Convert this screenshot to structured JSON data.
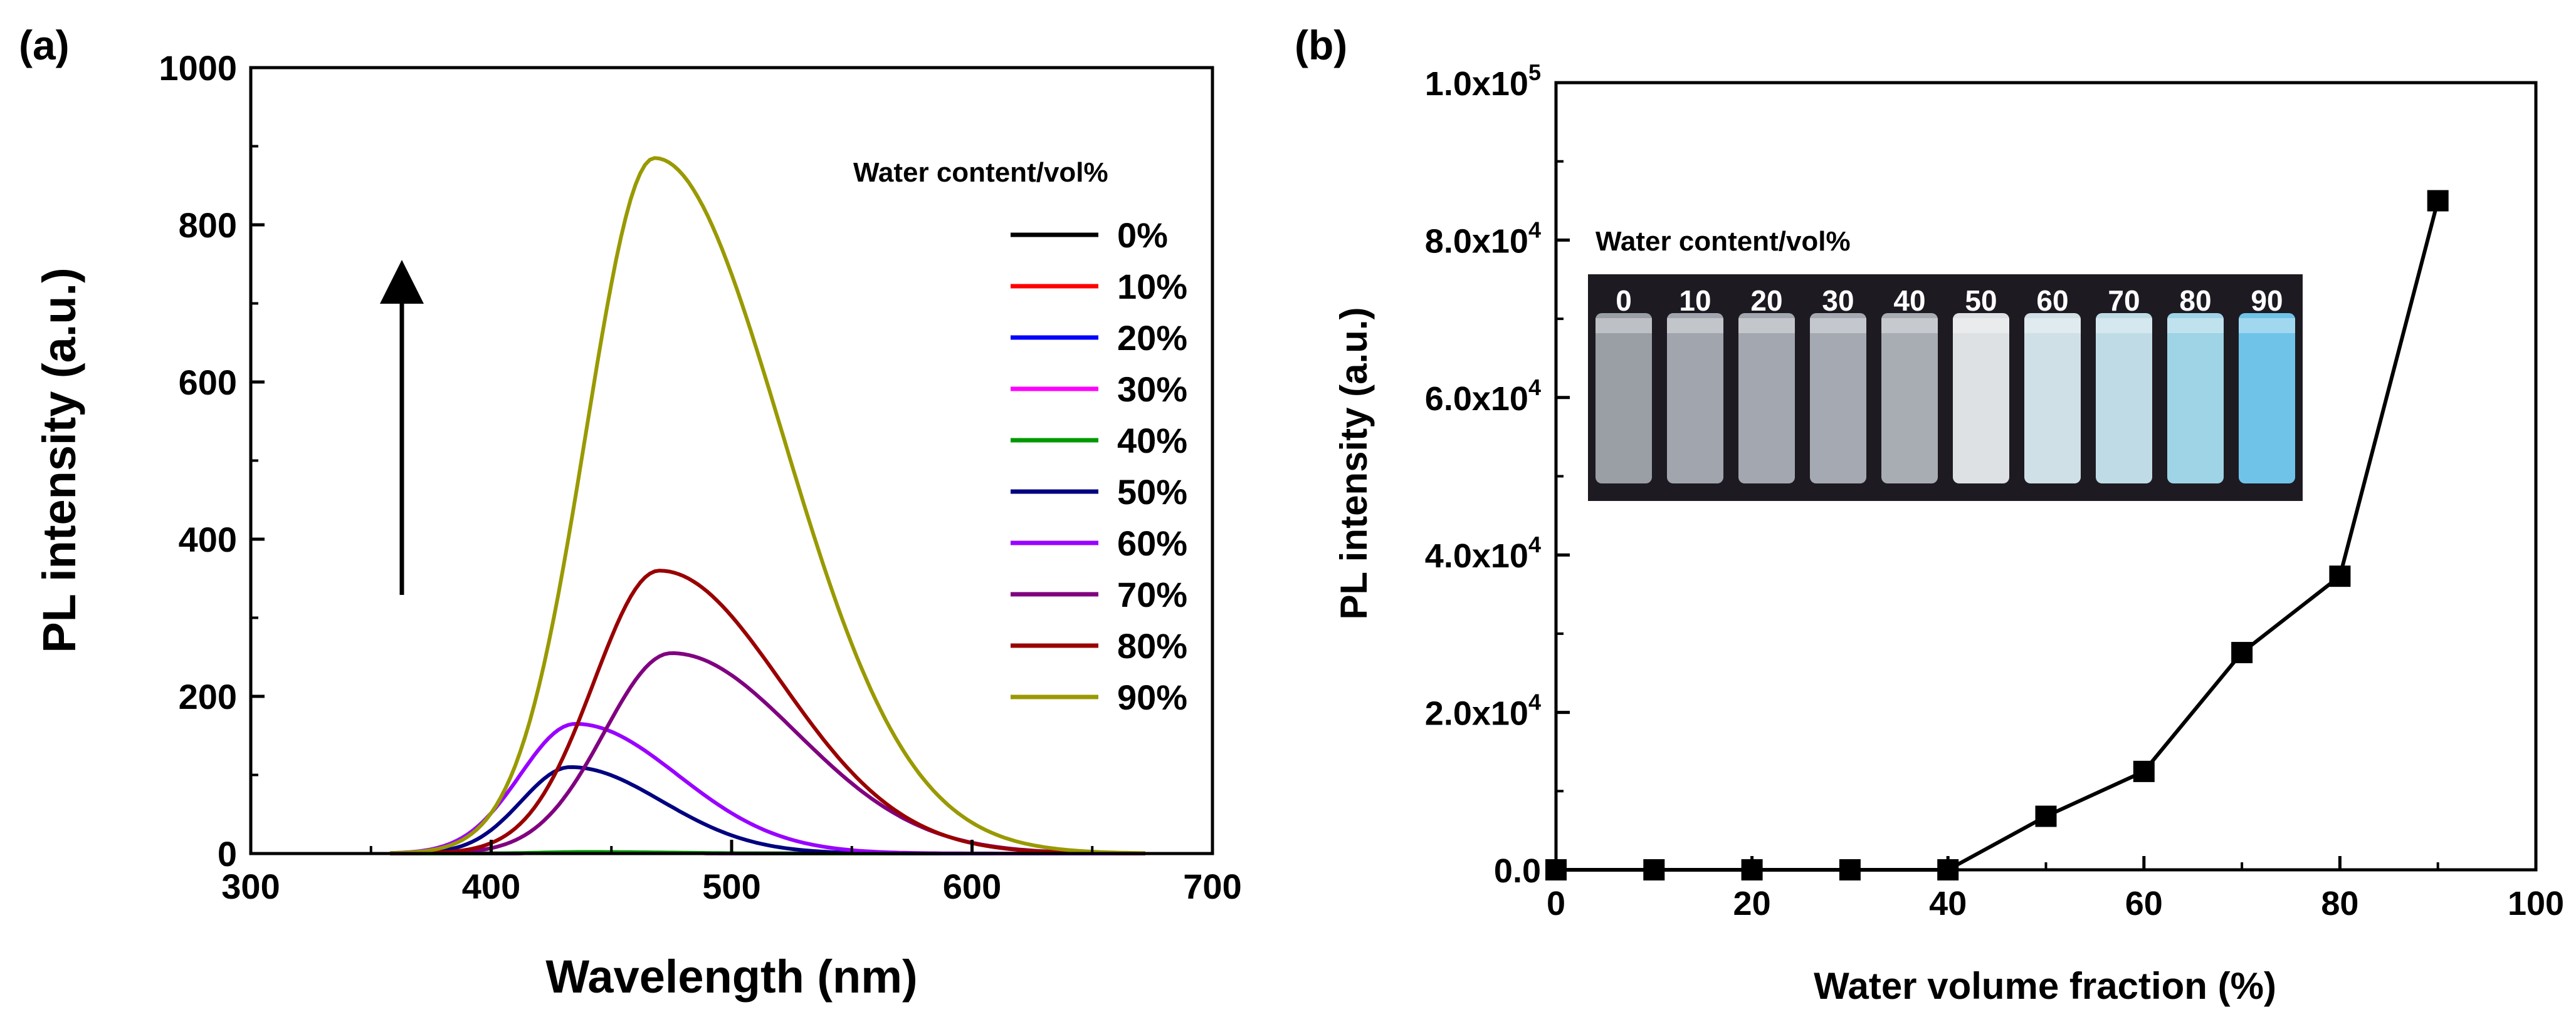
{
  "panels": {
    "a_label": "(a)",
    "b_label": "(b)"
  },
  "chart_data": [
    {
      "id": "a",
      "type": "line",
      "title": "",
      "xlabel": "Wavelength (nm)",
      "ylabel": "PL intensity (a.u.)",
      "xlim": [
        300,
        700
      ],
      "ylim": [
        0,
        1000
      ],
      "xticks": [
        "300",
        "400",
        "500",
        "600",
        "700"
      ],
      "yticks": [
        "0",
        "200",
        "400",
        "600",
        "800",
        "1000"
      ],
      "legend_title": "Water content/vol%",
      "legend_position": "top-right",
      "arrow": "upward arrow indicating increasing water content",
      "series": [
        {
          "name": "0%",
          "color": "#000000",
          "peak_x": 440,
          "peak_y": 1,
          "width": 30
        },
        {
          "name": "10%",
          "color": "#ff0000",
          "peak_x": 440,
          "peak_y": 1,
          "width": 30
        },
        {
          "name": "20%",
          "color": "#0000ff",
          "peak_x": 440,
          "peak_y": 1,
          "width": 30
        },
        {
          "name": "30%",
          "color": "#ff00ff",
          "peak_x": 440,
          "peak_y": 1,
          "width": 30
        },
        {
          "name": "40%",
          "color": "#009900",
          "peak_x": 440,
          "peak_y": 2,
          "width": 30
        },
        {
          "name": "50%",
          "color": "#000080",
          "peak_x": 433,
          "peak_y": 110,
          "width": 33
        },
        {
          "name": "60%",
          "color": "#9900ff",
          "peak_x": 435,
          "peak_y": 165,
          "width": 37
        },
        {
          "name": "70%",
          "color": "#800080",
          "peak_x": 475,
          "peak_y": 255,
          "width": 45
        },
        {
          "name": "80%",
          "color": "#990000",
          "peak_x": 470,
          "peak_y": 360,
          "width": 44
        },
        {
          "name": "90%",
          "color": "#999900",
          "peak_x": 468,
          "peak_y": 885,
          "width": 46
        }
      ]
    },
    {
      "id": "b",
      "type": "line",
      "title": "",
      "xlabel": "Water volume fraction (%)",
      "ylabel": "PL intensity (a.u.)",
      "xlim": [
        0,
        100
      ],
      "ylim": [
        0,
        100000
      ],
      "xticks": [
        "0",
        "20",
        "40",
        "60",
        "80",
        "100"
      ],
      "yticks": [
        {
          "mant": "0.0",
          "exp": ""
        },
        {
          "mant": "2.0x10",
          "exp": "4"
        },
        {
          "mant": "4.0x10",
          "exp": "4"
        },
        {
          "mant": "6.0x10",
          "exp": "4"
        },
        {
          "mant": "8.0x10",
          "exp": "4"
        },
        {
          "mant": "1.0x10",
          "exp": "5"
        }
      ],
      "x": [
        0,
        10,
        20,
        30,
        40,
        50,
        60,
        70,
        80,
        90
      ],
      "values": [
        0,
        0,
        0,
        0,
        0,
        6800,
        12500,
        27600,
        37300,
        85000
      ],
      "marker": "square",
      "inset": {
        "title": "Water content/vol%",
        "labels": [
          "0",
          "10",
          "20",
          "30",
          "40",
          "50",
          "60",
          "70",
          "80",
          "90"
        ],
        "vial_colors": [
          "#9a9fa6",
          "#a1a6ae",
          "#a3a8b0",
          "#a5aab2",
          "#a8adb4",
          "#dde1e4",
          "#cfe0e6",
          "#bfdce6",
          "#9fd3e6",
          "#6fc3e8"
        ]
      }
    }
  ]
}
